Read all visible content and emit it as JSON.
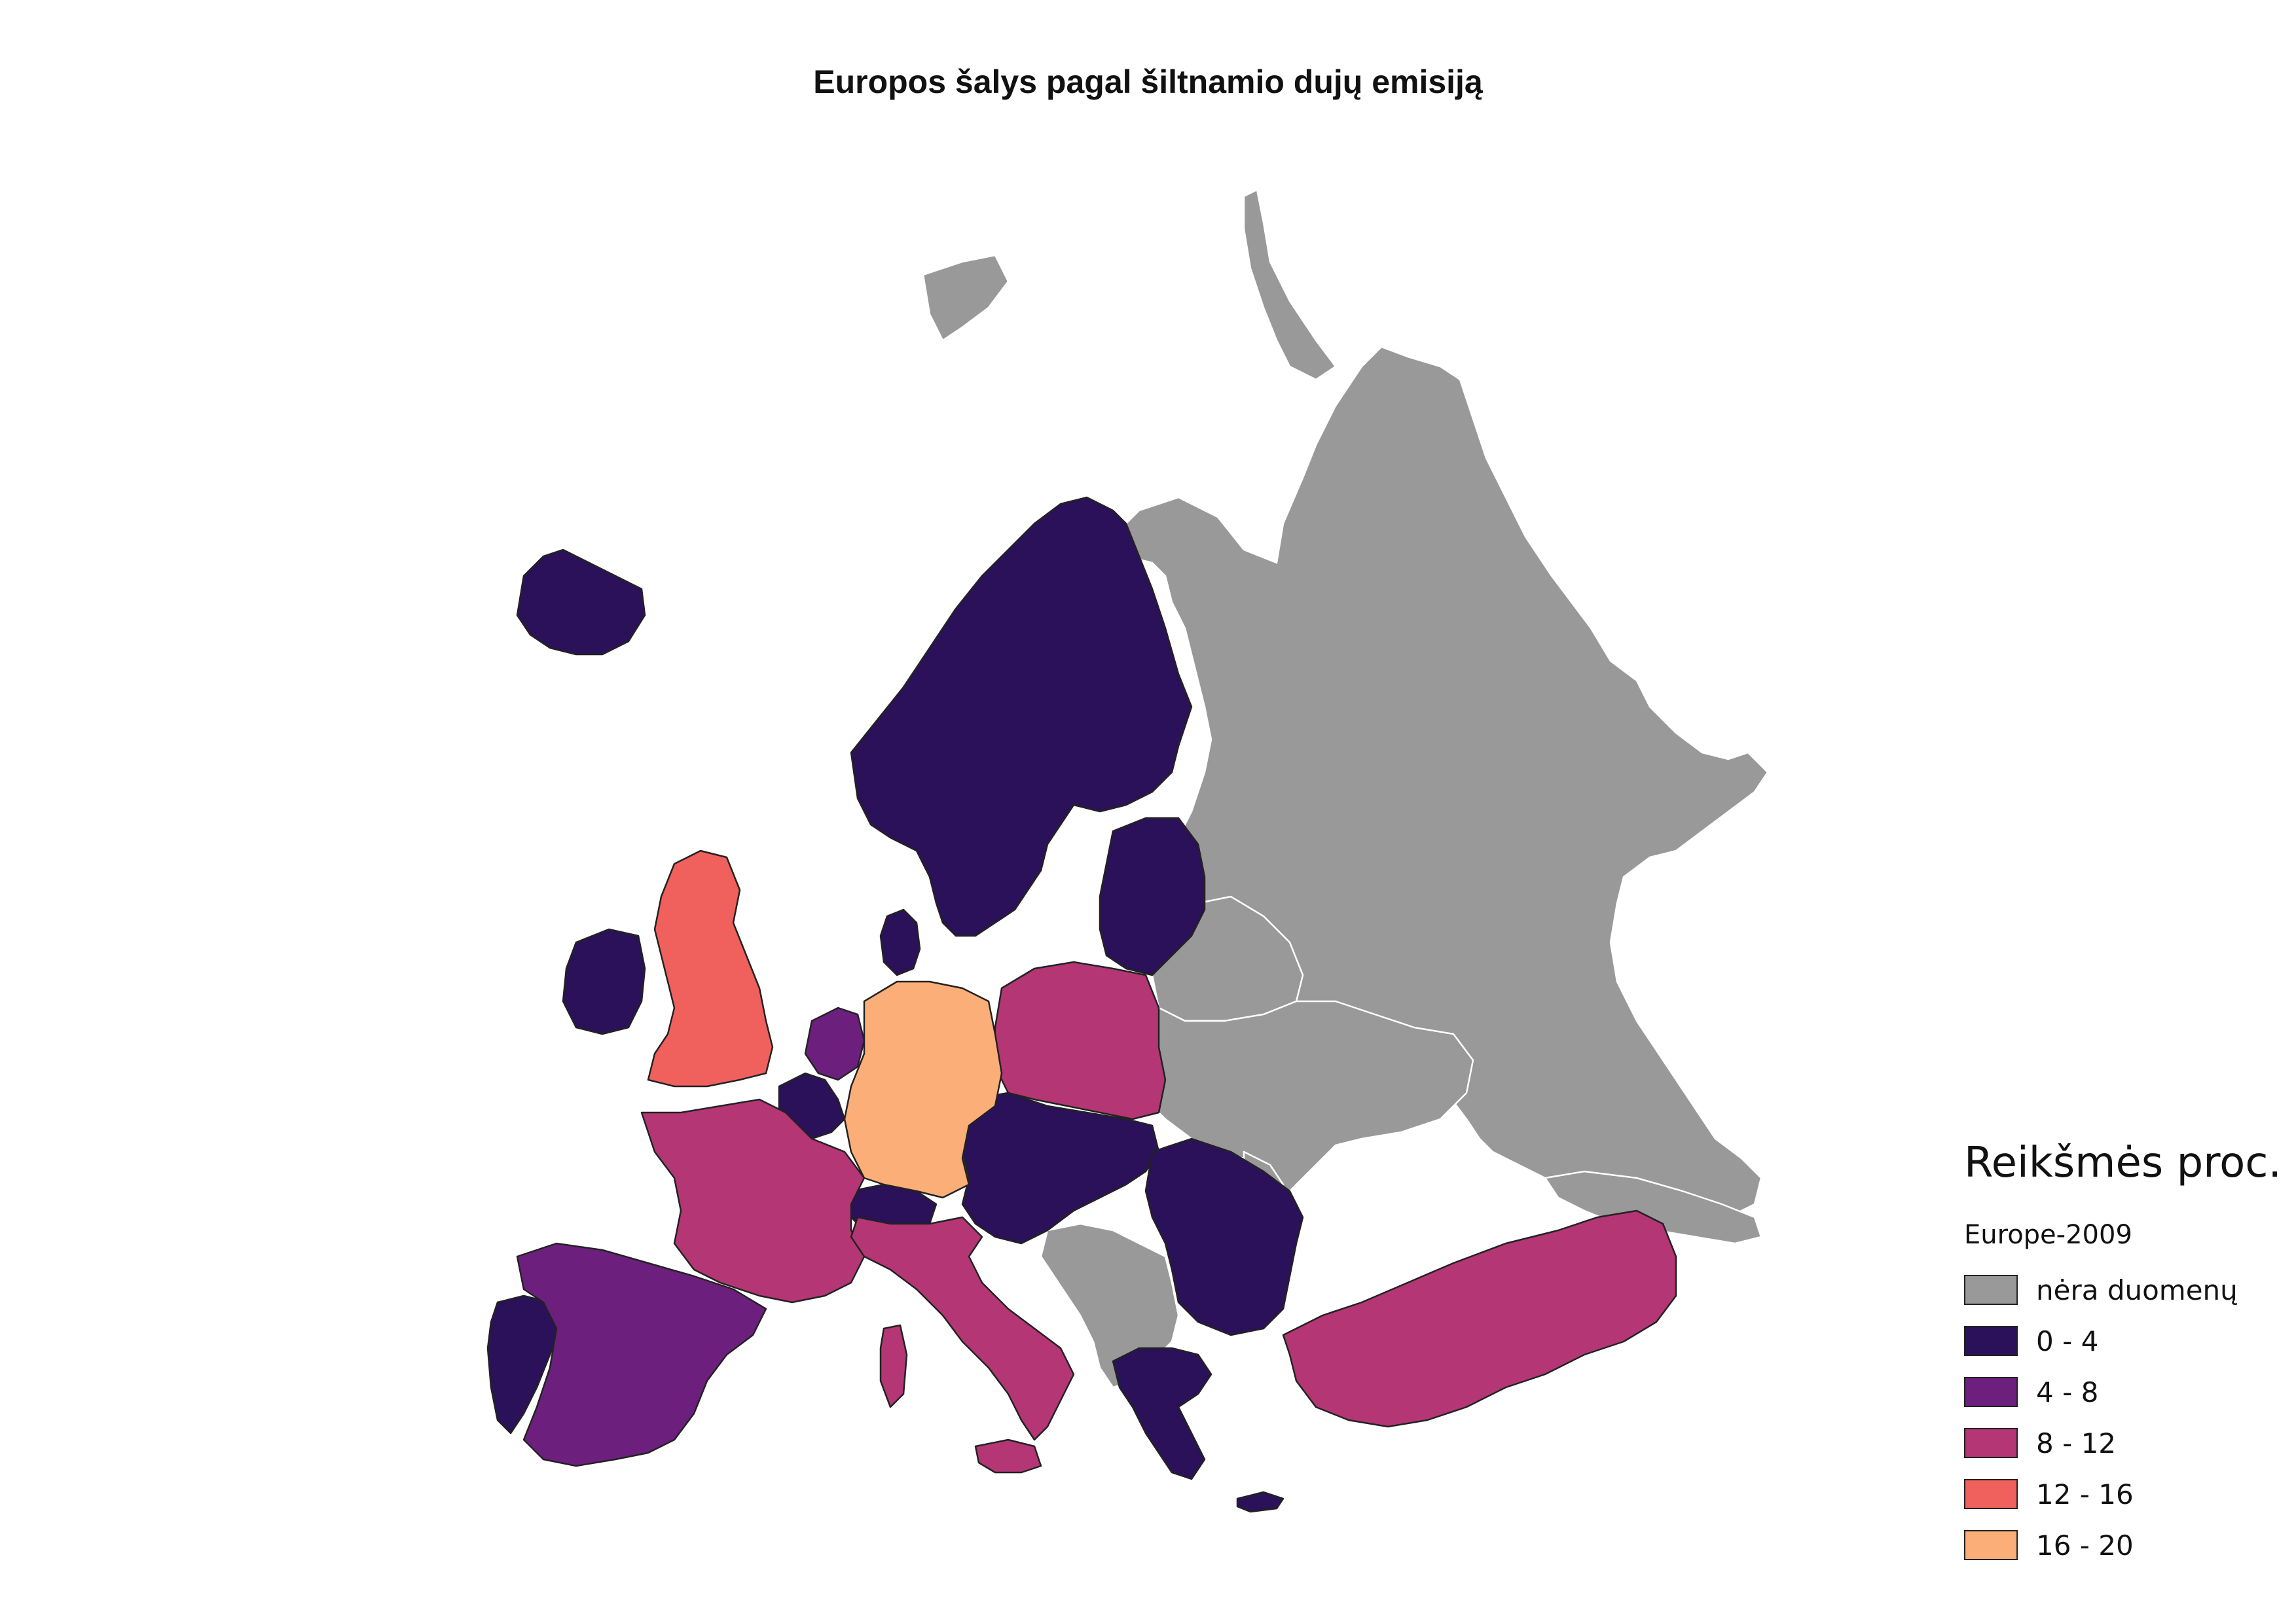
{
  "title": "Europos šalys pagal šiltnamio dujų emisiją",
  "legend": {
    "title": "Reikšmės proc.",
    "layer": "Europe-2009",
    "classes": [
      {
        "label": "nėra duomenų",
        "color": "#999999"
      },
      {
        "label": "0 - 4",
        "color": "#2a1159"
      },
      {
        "label": "4 - 8",
        "color": "#6d1f7e"
      },
      {
        "label": "8 - 12",
        "color": "#b43675"
      },
      {
        "label": "12 - 16",
        "color": "#f0605d"
      },
      {
        "label": "16 - 20",
        "color": "#fcae79"
      }
    ]
  },
  "map_data": {
    "class_ranges_percent": [
      [
        0,
        4
      ],
      [
        4,
        8
      ],
      [
        8,
        12
      ],
      [
        12,
        16
      ],
      [
        16,
        20
      ]
    ],
    "countries": {
      "Iceland": "0 - 4",
      "Ireland": "0 - 4",
      "United Kingdom": "12 - 16",
      "Norway": "0 - 4",
      "Sweden": "0 - 4",
      "Finland": "0 - 4",
      "Denmark": "0 - 4",
      "Estonia": "0 - 4",
      "Latvia": "0 - 4",
      "Lithuania": "0 - 4",
      "Netherlands": "4 - 8",
      "Belgium": "0 - 4",
      "Luxembourg": "0 - 4",
      "Germany": "16 - 20",
      "Poland": "8 - 12",
      "France": "8 - 12",
      "Switzerland": "0 - 4",
      "Austria": "0 - 4",
      "Czech Republic": "0 - 4",
      "Slovakia": "0 - 4",
      "Hungary": "0 - 4",
      "Slovenia": "0 - 4",
      "Croatia": "0 - 4",
      "Romania": "0 - 4",
      "Bulgaria": "0 - 4",
      "Greece": "0 - 4",
      "Cyprus": "0 - 4",
      "Portugal": "0 - 4",
      "Spain": "4 - 8",
      "Italy": "8 - 12",
      "Turkey": "8 - 12",
      "Russia": "nėra duomenų",
      "Belarus": "nėra duomenų",
      "Ukraine": "nėra duomenų",
      "Moldova": "nėra duomenų",
      "Bosnia and Herzegovina": "nėra duomenų",
      "Serbia": "nėra duomenų",
      "Montenegro": "nėra duomenų",
      "Albania": "nėra duomenų",
      "North Macedonia": "nėra duomenų",
      "Georgia": "nėra duomenų",
      "Armenia": "nėra duomenų",
      "Azerbaijan": "nėra duomenų",
      "Kazakhstan (west)": "nėra duomenų",
      "Svalbard": "nėra duomenų"
    }
  }
}
